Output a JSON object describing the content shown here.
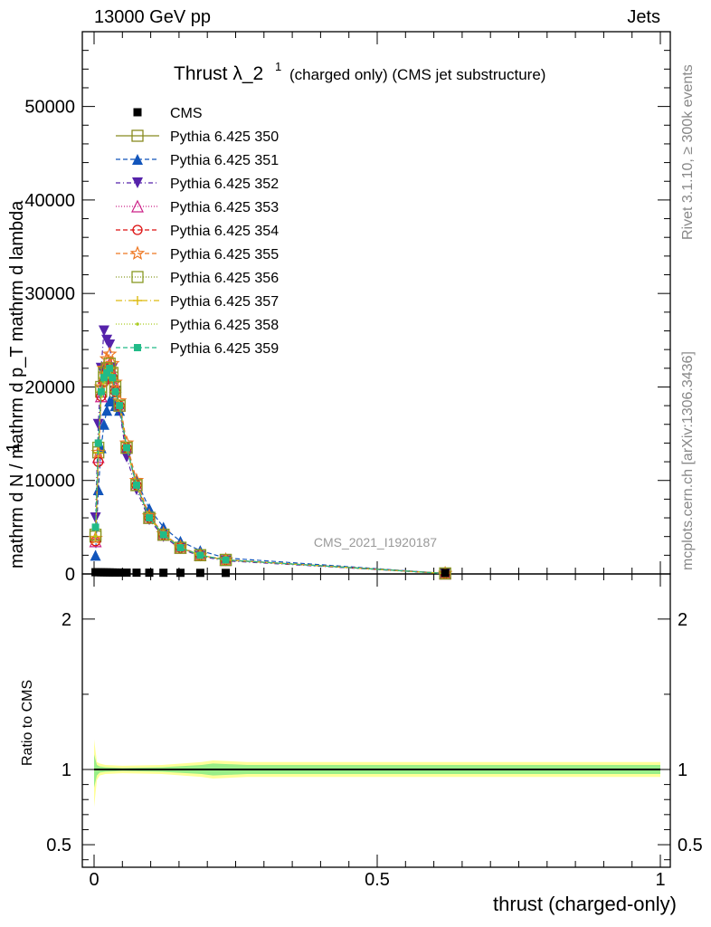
{
  "header": {
    "left": "13000 GeV pp",
    "right": "Jets"
  },
  "side": {
    "rivet": "Rivet 3.1.10, ≥ 300k events",
    "mcplots": "mcplots.cern.ch [arXiv:1306.3436]"
  },
  "watermark": "CMS_2021_I1920187",
  "y_label_main": "mathrm d N / mathrm d p_T mathrm d lambda",
  "y_label_main_num": "1",
  "y_label_ratio": "Ratio to CMS",
  "x_label": "thrust (charged-only)",
  "chart_data": [
    {
      "type": "line",
      "title_main": "Thrust λ_2",
      "title_sup": "1",
      "title_suffix": "(charged only) (CMS jet substructure)",
      "xlim": [
        0,
        1
      ],
      "ylim": [
        0,
        58000
      ],
      "x_ticks": [
        "0",
        "0.5",
        "1"
      ],
      "y_ticks": [
        "0",
        "10000",
        "20000",
        "30000",
        "40000",
        "50000"
      ],
      "y_tick_values": [
        0,
        10000,
        20000,
        30000,
        40000,
        50000
      ],
      "data": {
        "name": "CMS",
        "color": "#000000",
        "x": [
          0.0025,
          0.0075,
          0.0125,
          0.0175,
          0.0225,
          0.0275,
          0.0325,
          0.0375,
          0.045,
          0.0575,
          0.075,
          0.0975,
          0.1225,
          0.1525,
          0.1875,
          0.2325,
          0.62
        ],
        "y": [
          90,
          85,
          80,
          75,
          70,
          65,
          60,
          55,
          50,
          45,
          40,
          35,
          30,
          25,
          20,
          15,
          5
        ]
      },
      "series": [
        {
          "name": "Pythia 6.425 350",
          "color": "#888a1f",
          "dash": "",
          "marker": "open-square",
          "x": [
            0.0025,
            0.0075,
            0.0125,
            0.0175,
            0.0225,
            0.0275,
            0.0325,
            0.0375,
            0.045,
            0.0575,
            0.075,
            0.0975,
            0.1225,
            0.1525,
            0.1875,
            0.2325,
            0.62
          ],
          "y": [
            4000,
            13000,
            19500,
            21000,
            21500,
            22000,
            21000,
            19500,
            18000,
            13500,
            9500,
            6000,
            4200,
            2800,
            2000,
            1500,
            50
          ]
        },
        {
          "name": "Pythia 6.425 351",
          "color": "#1155bb",
          "dash": "5,3",
          "marker": "triangle-up",
          "x": [
            0.0025,
            0.0075,
            0.0125,
            0.0175,
            0.0225,
            0.0275,
            0.0325,
            0.0375,
            0.045,
            0.0575,
            0.075,
            0.0975,
            0.1225,
            0.1525,
            0.1875,
            0.2325,
            0.62
          ],
          "y": [
            2000,
            9000,
            13500,
            16000,
            17500,
            18500,
            18500,
            18000,
            17500,
            13500,
            10000,
            7000,
            5000,
            3500,
            2500,
            1700,
            50
          ]
        },
        {
          "name": "Pythia 6.425 352",
          "color": "#5522aa",
          "dash": "5,3,1,3",
          "marker": "triangle-down",
          "x": [
            0.0025,
            0.0075,
            0.0125,
            0.0175,
            0.0225,
            0.0275,
            0.0325,
            0.0375,
            0.045,
            0.0575,
            0.075,
            0.0975,
            0.1225,
            0.1525,
            0.1875,
            0.2325,
            0.62
          ],
          "y": [
            6000,
            16000,
            22000,
            26000,
            25000,
            24500,
            22000,
            19500,
            17500,
            12500,
            9000,
            5800,
            4000,
            2700,
            1900,
            1400,
            50
          ]
        },
        {
          "name": "Pythia 6.425 353",
          "color": "#cc2288",
          "dash": "1,2",
          "marker": "open-triangle-up",
          "x": [
            0.0025,
            0.0075,
            0.0125,
            0.0175,
            0.0225,
            0.0275,
            0.0325,
            0.0375,
            0.045,
            0.0575,
            0.075,
            0.0975,
            0.1225,
            0.1525,
            0.1875,
            0.2325,
            0.62
          ],
          "y": [
            3500,
            12500,
            19000,
            21000,
            22000,
            22500,
            21500,
            20000,
            18000,
            13500,
            9500,
            6000,
            4200,
            2800,
            2000,
            1500,
            50
          ]
        },
        {
          "name": "Pythia 6.425 354",
          "color": "#dd1111",
          "dash": "5,3",
          "marker": "open-circle",
          "x": [
            0.0025,
            0.0075,
            0.0125,
            0.0175,
            0.0225,
            0.0275,
            0.0325,
            0.0375,
            0.045,
            0.0575,
            0.075,
            0.0975,
            0.1225,
            0.1525,
            0.1875,
            0.2325,
            0.62
          ],
          "y": [
            3500,
            12000,
            19000,
            20500,
            21500,
            22000,
            21000,
            19500,
            18000,
            13500,
            9500,
            6000,
            4200,
            2800,
            2000,
            1500,
            50
          ]
        },
        {
          "name": "Pythia 6.425 355",
          "color": "#ee7722",
          "dash": "5,3",
          "marker": "open-star",
          "x": [
            0.0025,
            0.0075,
            0.0125,
            0.0175,
            0.0225,
            0.0275,
            0.0325,
            0.0375,
            0.045,
            0.0575,
            0.075,
            0.0975,
            0.1225,
            0.1525,
            0.1875,
            0.2325,
            0.62
          ],
          "y": [
            3800,
            13000,
            20000,
            22000,
            23000,
            23500,
            22500,
            20500,
            18500,
            14000,
            10000,
            6200,
            4300,
            2900,
            2000,
            1500,
            50
          ]
        },
        {
          "name": "Pythia 6.425 356",
          "color": "#889922",
          "dash": "1,2",
          "marker": "open-square",
          "x": [
            0.0025,
            0.0075,
            0.0125,
            0.0175,
            0.0225,
            0.0275,
            0.0325,
            0.0375,
            0.045,
            0.0575,
            0.075,
            0.0975,
            0.1225,
            0.1525,
            0.1875,
            0.2325,
            0.62
          ],
          "y": [
            4200,
            13500,
            20000,
            21500,
            22000,
            22500,
            21500,
            20000,
            18000,
            13500,
            9500,
            6000,
            4200,
            2800,
            2000,
            1500,
            50
          ]
        },
        {
          "name": "Pythia 6.425 357",
          "color": "#ddbb11",
          "dash": "7,3,1,3",
          "marker": "plus",
          "x": [
            0.0025,
            0.0075,
            0.0125,
            0.0175,
            0.0225,
            0.0275,
            0.0325,
            0.0375,
            0.045,
            0.0575,
            0.075,
            0.0975,
            0.1225,
            0.1525,
            0.1875,
            0.2325,
            0.62
          ],
          "y": [
            4000,
            13000,
            19500,
            21000,
            21500,
            22000,
            21000,
            19500,
            18000,
            13500,
            9500,
            6000,
            4200,
            2800,
            2000,
            1500,
            50
          ]
        },
        {
          "name": "Pythia 6.425 358",
          "color": "#aacc22",
          "dash": "1,2",
          "marker": "dot",
          "x": [
            0.0025,
            0.0075,
            0.0125,
            0.0175,
            0.0225,
            0.0275,
            0.0325,
            0.0375,
            0.045,
            0.0575,
            0.075,
            0.0975,
            0.1225,
            0.1525,
            0.1875,
            0.2325,
            0.62
          ],
          "y": [
            4000,
            13000,
            19000,
            20500,
            21000,
            21500,
            21000,
            19500,
            18000,
            13500,
            9500,
            6000,
            4200,
            2800,
            2000,
            1500,
            50
          ]
        },
        {
          "name": "Pythia 6.425 359",
          "color": "#22bb88",
          "dash": "5,3",
          "marker": "filled-square",
          "x": [
            0.0025,
            0.0075,
            0.0125,
            0.0175,
            0.0225,
            0.0275,
            0.0325,
            0.0375,
            0.045,
            0.0575,
            0.075,
            0.0975,
            0.1225,
            0.1525,
            0.1875,
            0.2325,
            0.62
          ],
          "y": [
            5000,
            14000,
            19500,
            21000,
            21500,
            22000,
            21000,
            19500,
            18000,
            13500,
            9500,
            6000,
            4200,
            2800,
            2000,
            1500,
            50
          ]
        }
      ]
    },
    {
      "type": "line",
      "xlim": [
        0,
        1
      ],
      "ylim": [
        0.35,
        2.3
      ],
      "x_ticks": [
        "0",
        "0.5",
        "1"
      ],
      "x_tick_values": [
        0,
        0.5,
        1
      ],
      "y_ticks": [
        "0.5",
        "1",
        "2"
      ],
      "y_tick_values": [
        0.5,
        1,
        2
      ],
      "reference": 1,
      "bands": [
        {
          "name": "stat+syst",
          "color": "#ffff99",
          "x": [
            0,
            0.005,
            0.01,
            0.02,
            0.05,
            0.12,
            0.19,
            0.21,
            0.27,
            1.0
          ],
          "lo": [
            0.75,
            0.93,
            0.96,
            0.97,
            0.975,
            0.97,
            0.95,
            0.94,
            0.95,
            0.95
          ],
          "hi": [
            1.2,
            1.05,
            1.04,
            1.03,
            1.025,
            1.03,
            1.05,
            1.06,
            1.05,
            1.05
          ]
        },
        {
          "name": "stat",
          "color": "#99ee88",
          "x": [
            0,
            0.005,
            0.01,
            0.02,
            0.05,
            0.12,
            0.19,
            0.21,
            0.27,
            1.0
          ],
          "lo": [
            0.88,
            0.96,
            0.98,
            0.985,
            0.99,
            0.985,
            0.97,
            0.96,
            0.97,
            0.97
          ],
          "hi": [
            1.1,
            1.03,
            1.02,
            1.015,
            1.01,
            1.015,
            1.03,
            1.04,
            1.03,
            1.03
          ]
        }
      ]
    }
  ]
}
